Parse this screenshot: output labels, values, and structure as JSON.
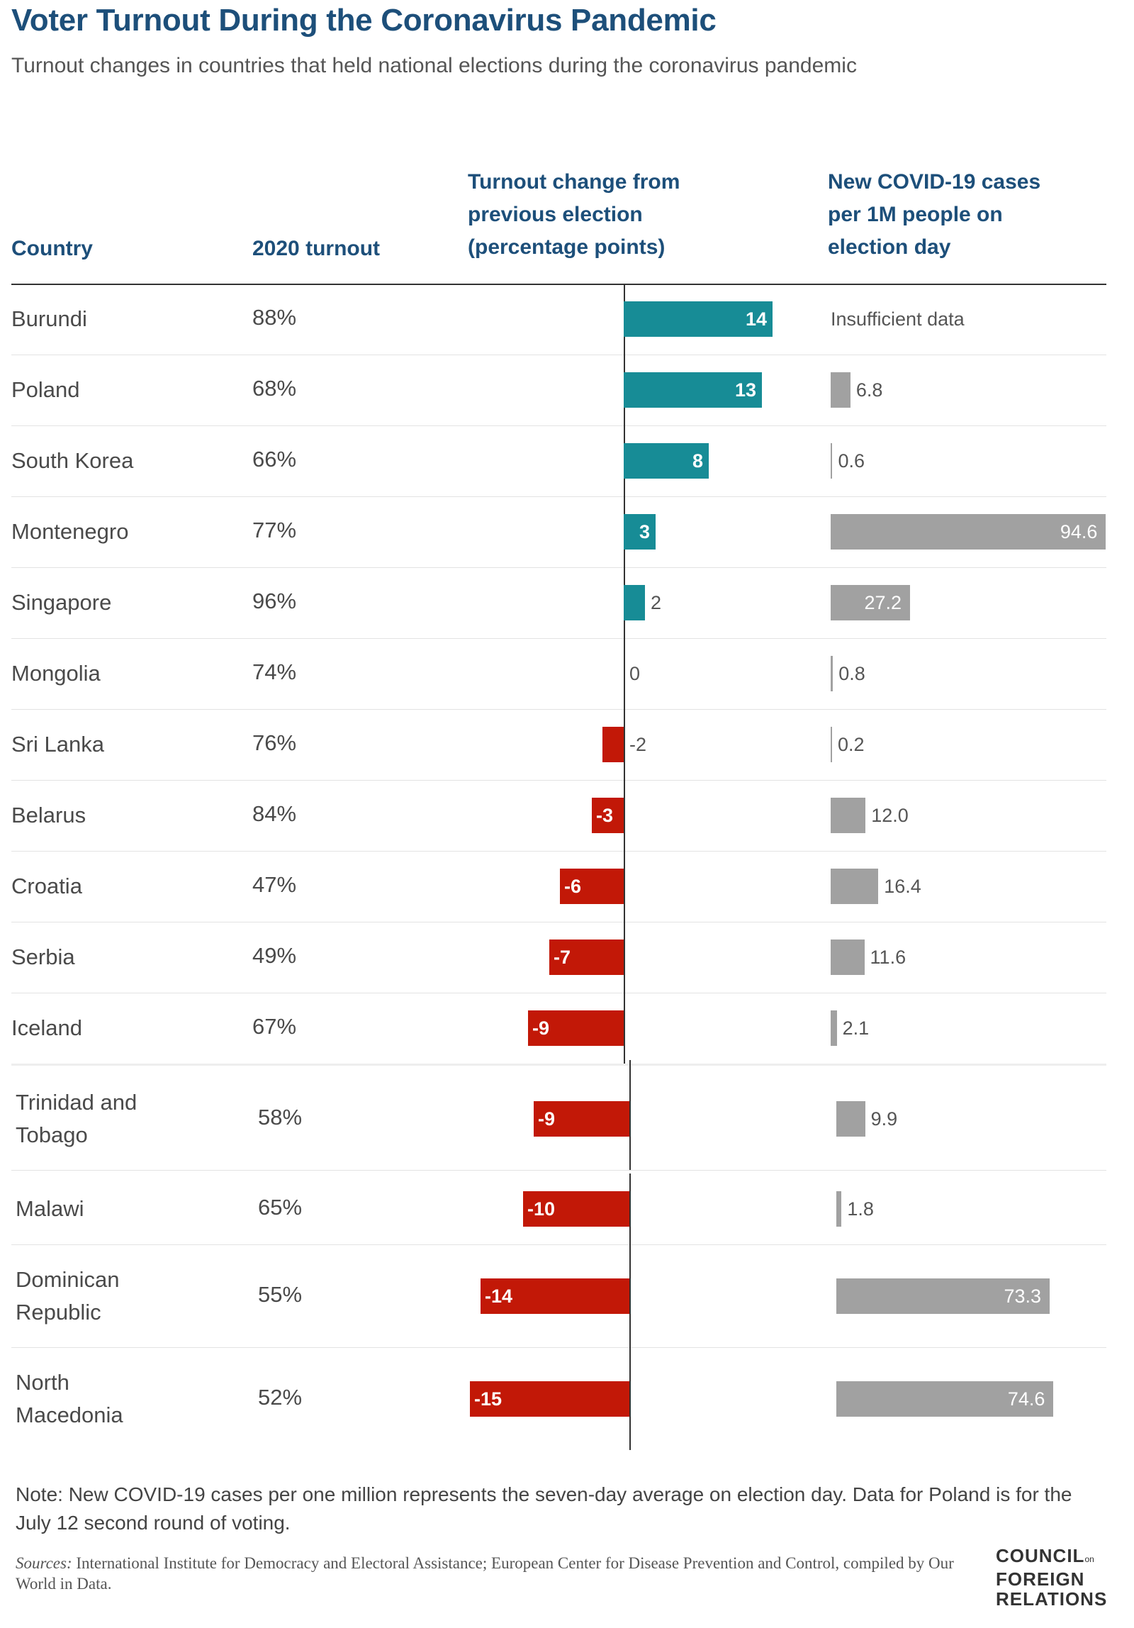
{
  "title": "Voter Turnout During the Coronavirus Pandemic",
  "subtitle": "Turnout changes in countries that held national elections during the coronavirus pandemic",
  "headers": {
    "country": "Country",
    "turnout": "2020 turnout",
    "change": "Turnout change from\nprevious election\n(percentage points)",
    "cases": "New COVID-19 cases\nper 1M people on\nelection day"
  },
  "chart_data": {
    "type": "table",
    "title": "Voter Turnout During the Coronavirus Pandemic",
    "columns": [
      "Country",
      "2020 turnout",
      "Turnout change from previous election (percentage points)",
      "New COVID-19 cases per 1M people on election day"
    ],
    "rows": [
      {
        "country": "Burundi",
        "turnout": "88%",
        "change": 14,
        "cases": null,
        "cases_text": "Insufficient data"
      },
      {
        "country": "Poland",
        "turnout": "68%",
        "change": 13,
        "cases": 6.8,
        "cases_text": "6.8"
      },
      {
        "country": "South Korea",
        "turnout": "66%",
        "change": 8,
        "cases": 0.6,
        "cases_text": "0.6"
      },
      {
        "country": "Montenegro",
        "turnout": "77%",
        "change": 3,
        "cases": 94.6,
        "cases_text": "94.6"
      },
      {
        "country": "Singapore",
        "turnout": "96%",
        "change": 2,
        "cases": 27.2,
        "cases_text": "27.2"
      },
      {
        "country": "Mongolia",
        "turnout": "74%",
        "change": 0,
        "cases": 0.8,
        "cases_text": "0.8"
      },
      {
        "country": "Sri Lanka",
        "turnout": "76%",
        "change": -2,
        "cases": 0.2,
        "cases_text": "0.2"
      },
      {
        "country": "Belarus",
        "turnout": "84%",
        "change": -3,
        "cases": 12.0,
        "cases_text": "12.0"
      },
      {
        "country": "Croatia",
        "turnout": "47%",
        "change": -6,
        "cases": 16.4,
        "cases_text": "16.4"
      },
      {
        "country": "Serbia",
        "turnout": "49%",
        "change": -7,
        "cases": 11.6,
        "cases_text": "11.6"
      },
      {
        "country": "Iceland",
        "turnout": "67%",
        "change": -9,
        "cases": 2.1,
        "cases_text": "2.1"
      },
      {
        "country": "Trinidad and\nTobago",
        "turnout": "58%",
        "change": -9,
        "cases": 9.9,
        "cases_text": "9.9"
      },
      {
        "country": "Malawi",
        "turnout": "65%",
        "change": -10,
        "cases": 1.8,
        "cases_text": "1.8"
      },
      {
        "country": "Dominican\nRepublic",
        "turnout": "55%",
        "change": -14,
        "cases": 73.3,
        "cases_text": "73.3"
      },
      {
        "country": "North\nMacedonia",
        "turnout": "52%",
        "change": -15,
        "cases": 74.6,
        "cases_text": "74.6"
      }
    ],
    "change_range": [
      -15,
      14
    ],
    "cases_range": [
      0,
      94.6
    ]
  },
  "colors": {
    "title": "#1d4f7a",
    "positive": "#178c96",
    "negative": "#c21807",
    "cases": "#a1a1a1"
  },
  "note": "Note: New COVID-19 cases per one million represents the seven-day average on election day. Data for Poland is for the July 12 second round of voting.",
  "sources": {
    "lead": "Sources:",
    "text": " International Institute for Democracy and Electoral Assistance; European Center for Disease Prevention and Control, compiled by Our World in Data."
  },
  "logo": {
    "line1": "COUNCIL",
    "small": "on",
    "line2": "FOREIGN",
    "line3": "RELATIONS"
  }
}
